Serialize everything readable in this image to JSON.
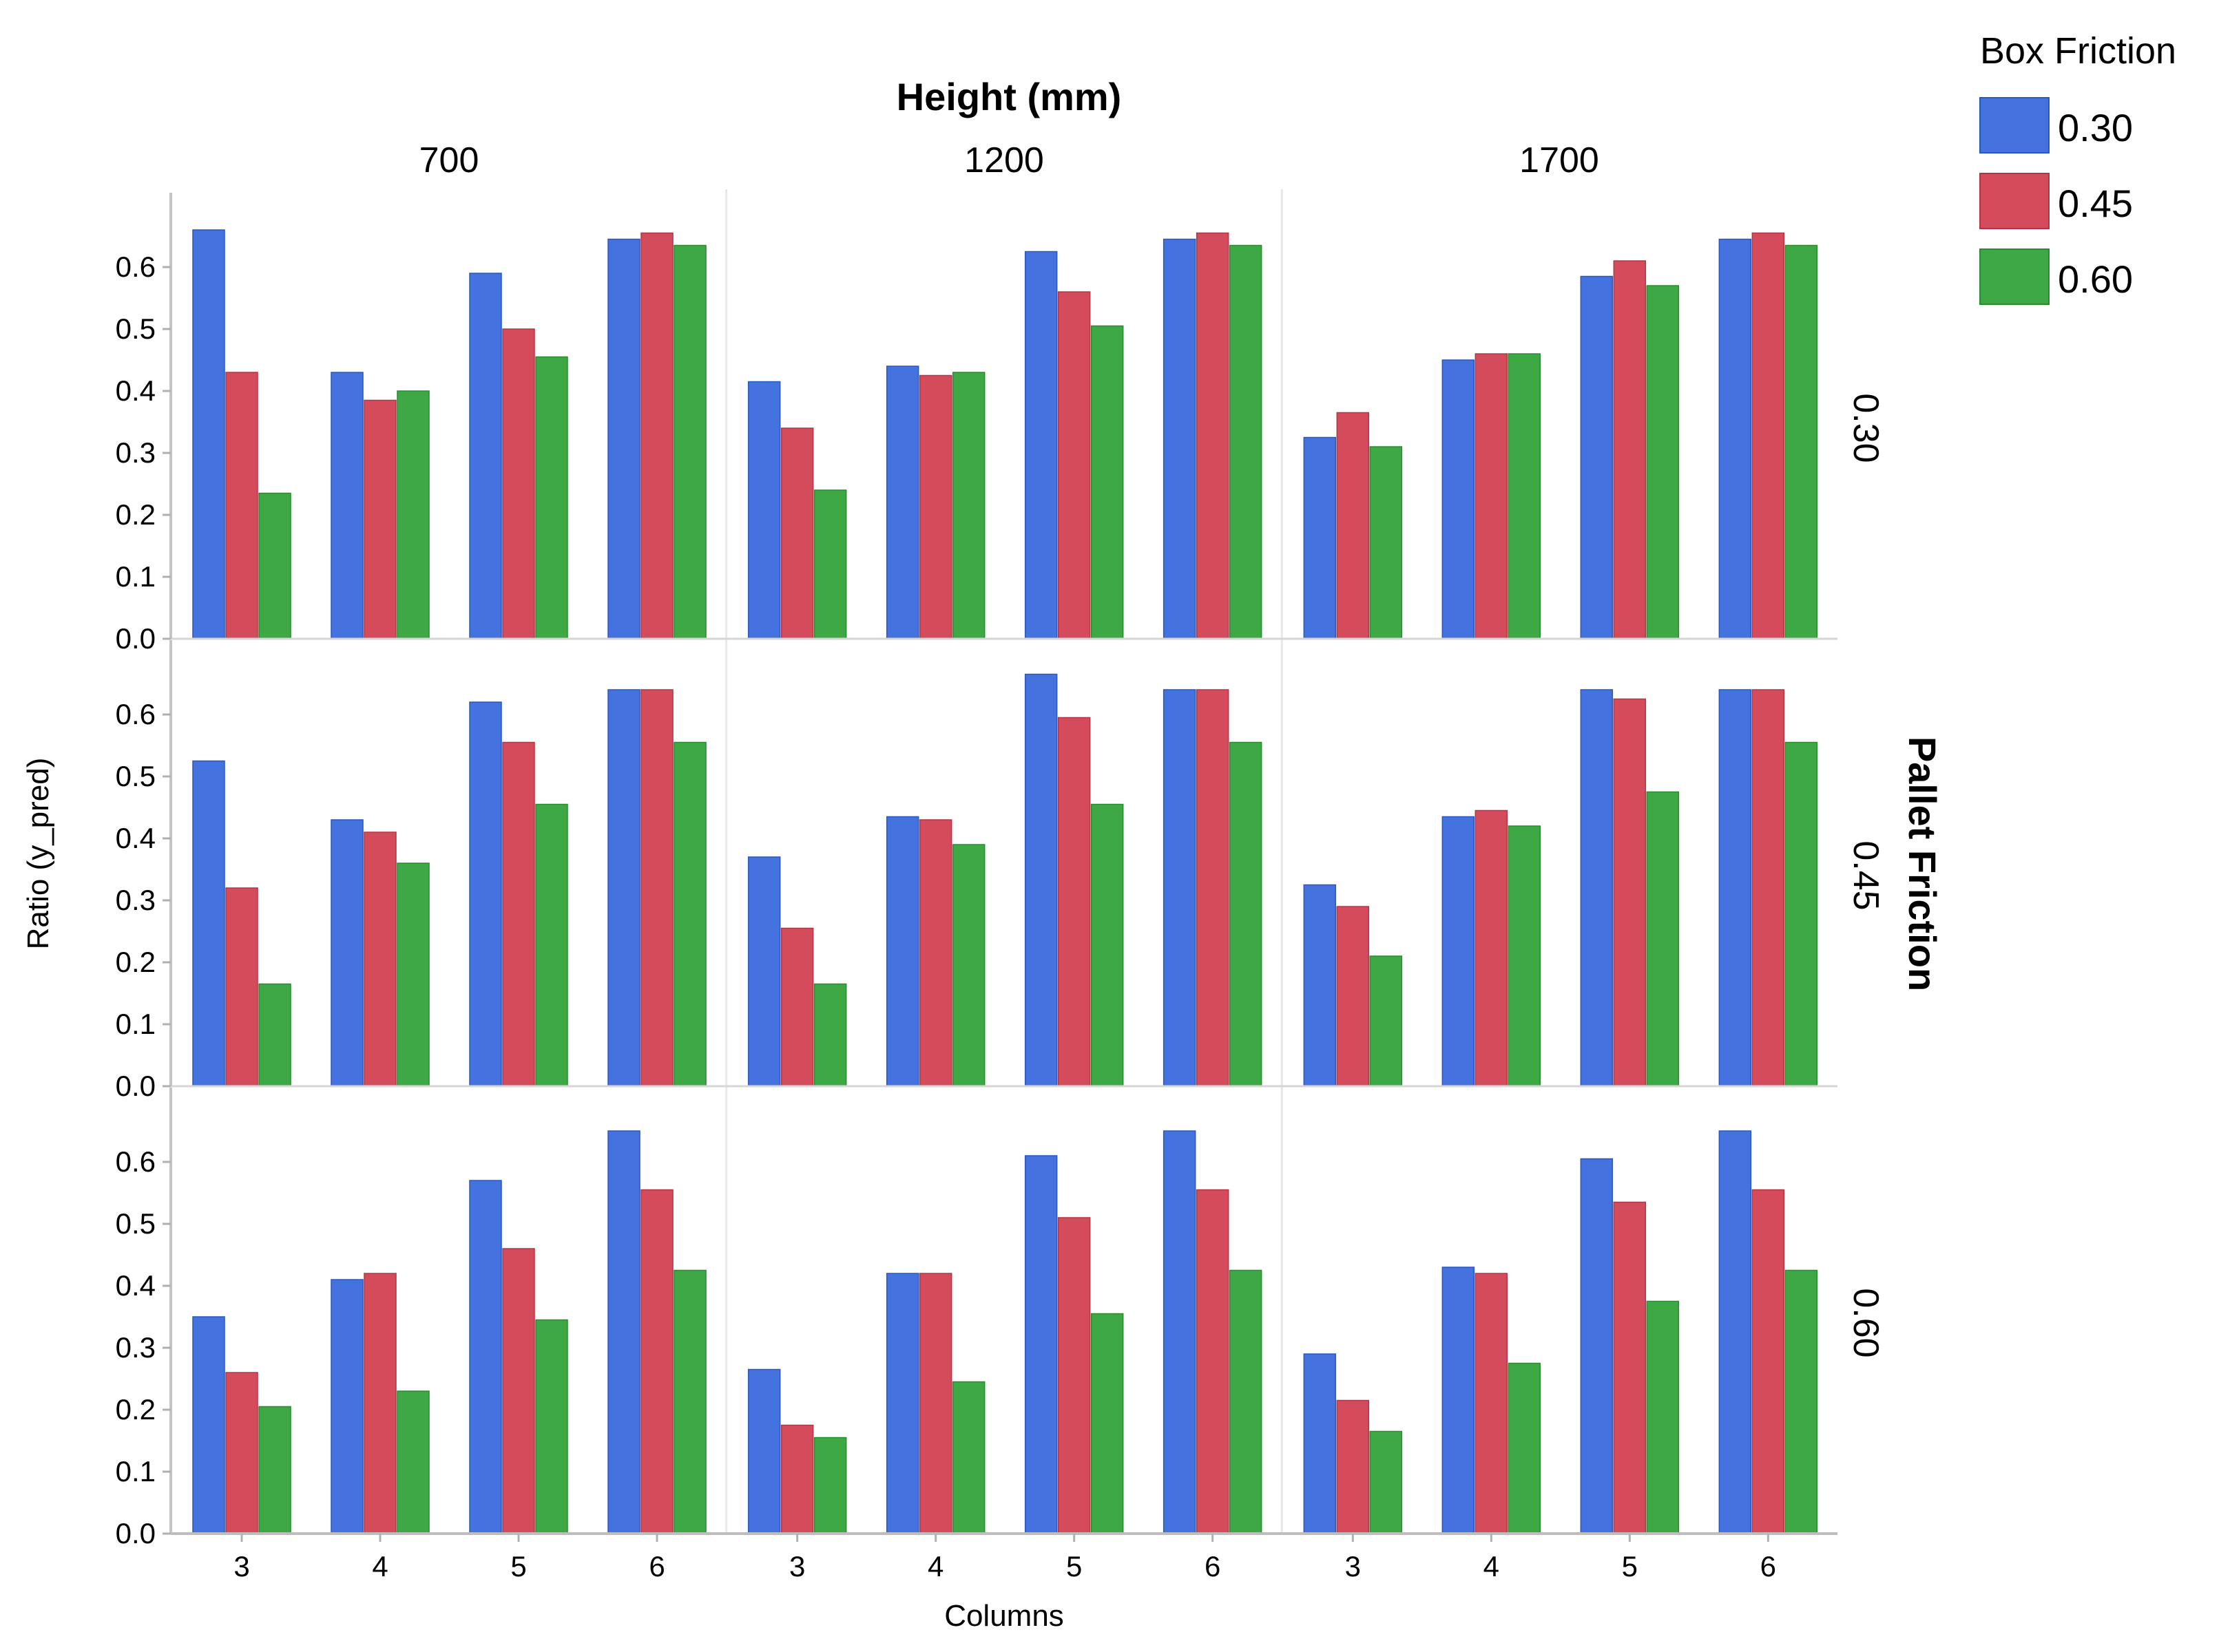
{
  "chart_data": {
    "type": "bar",
    "layout": "faceted-grid",
    "column_facet": {
      "title": "Height (mm)",
      "levels": [
        "700",
        "1200",
        "1700"
      ]
    },
    "row_facet": {
      "title": "Pallet Friction",
      "levels": [
        "0.30",
        "0.45",
        "0.60"
      ]
    },
    "categories": [
      "3",
      "4",
      "5",
      "6"
    ],
    "xlabel": "Columns",
    "ylabel": "Ratio (y_pred)",
    "ylim": [
      0,
      0.72
    ],
    "yticks": [
      "0.0",
      "0.1",
      "0.2",
      "0.3",
      "0.4",
      "0.5",
      "0.6"
    ],
    "legend": {
      "title": "Box Friction",
      "placement": "top-right",
      "entries": [
        {
          "label": "0.30",
          "color": "#4472df"
        },
        {
          "label": "0.45",
          "color": "#d44c5c"
        },
        {
          "label": "0.60",
          "color": "#3ea944"
        }
      ]
    },
    "panels": [
      {
        "pallet_friction": "0.30",
        "height": "700",
        "series": [
          {
            "name": "0.30",
            "values": [
              0.66,
              0.43,
              0.59,
              0.645
            ]
          },
          {
            "name": "0.45",
            "values": [
              0.43,
              0.385,
              0.5,
              0.655
            ]
          },
          {
            "name": "0.60",
            "values": [
              0.235,
              0.4,
              0.455,
              0.635
            ]
          }
        ]
      },
      {
        "pallet_friction": "0.30",
        "height": "1200",
        "series": [
          {
            "name": "0.30",
            "values": [
              0.415,
              0.44,
              0.625,
              0.645
            ]
          },
          {
            "name": "0.45",
            "values": [
              0.34,
              0.425,
              0.56,
              0.655
            ]
          },
          {
            "name": "0.60",
            "values": [
              0.24,
              0.43,
              0.505,
              0.635
            ]
          }
        ]
      },
      {
        "pallet_friction": "0.30",
        "height": "1700",
        "series": [
          {
            "name": "0.30",
            "values": [
              0.325,
              0.45,
              0.585,
              0.645
            ]
          },
          {
            "name": "0.45",
            "values": [
              0.365,
              0.46,
              0.61,
              0.655
            ]
          },
          {
            "name": "0.60",
            "values": [
              0.31,
              0.46,
              0.57,
              0.635
            ]
          }
        ]
      },
      {
        "pallet_friction": "0.45",
        "height": "700",
        "series": [
          {
            "name": "0.30",
            "values": [
              0.525,
              0.43,
              0.62,
              0.64
            ]
          },
          {
            "name": "0.45",
            "values": [
              0.32,
              0.41,
              0.555,
              0.64
            ]
          },
          {
            "name": "0.60",
            "values": [
              0.165,
              0.36,
              0.455,
              0.555
            ]
          }
        ]
      },
      {
        "pallet_friction": "0.45",
        "height": "1200",
        "series": [
          {
            "name": "0.30",
            "values": [
              0.37,
              0.435,
              0.665,
              0.64
            ]
          },
          {
            "name": "0.45",
            "values": [
              0.255,
              0.43,
              0.595,
              0.64
            ]
          },
          {
            "name": "0.60",
            "values": [
              0.165,
              0.39,
              0.455,
              0.555
            ]
          }
        ]
      },
      {
        "pallet_friction": "0.45",
        "height": "1700",
        "series": [
          {
            "name": "0.30",
            "values": [
              0.325,
              0.435,
              0.64,
              0.64
            ]
          },
          {
            "name": "0.45",
            "values": [
              0.29,
              0.445,
              0.625,
              0.64
            ]
          },
          {
            "name": "0.60",
            "values": [
              0.21,
              0.42,
              0.475,
              0.555
            ]
          }
        ]
      },
      {
        "pallet_friction": "0.60",
        "height": "700",
        "series": [
          {
            "name": "0.30",
            "values": [
              0.35,
              0.41,
              0.57,
              0.65
            ]
          },
          {
            "name": "0.45",
            "values": [
              0.26,
              0.42,
              0.46,
              0.555
            ]
          },
          {
            "name": "0.60",
            "values": [
              0.205,
              0.23,
              0.345,
              0.425
            ]
          }
        ]
      },
      {
        "pallet_friction": "0.60",
        "height": "1200",
        "series": [
          {
            "name": "0.30",
            "values": [
              0.265,
              0.42,
              0.61,
              0.65
            ]
          },
          {
            "name": "0.45",
            "values": [
              0.175,
              0.42,
              0.51,
              0.555
            ]
          },
          {
            "name": "0.60",
            "values": [
              0.155,
              0.245,
              0.355,
              0.425
            ]
          }
        ]
      },
      {
        "pallet_friction": "0.60",
        "height": "1700",
        "series": [
          {
            "name": "0.30",
            "values": [
              0.29,
              0.43,
              0.605,
              0.65
            ]
          },
          {
            "name": "0.45",
            "values": [
              0.215,
              0.42,
              0.535,
              0.555
            ]
          },
          {
            "name": "0.60",
            "values": [
              0.165,
              0.275,
              0.375,
              0.425
            ]
          }
        ]
      }
    ]
  }
}
